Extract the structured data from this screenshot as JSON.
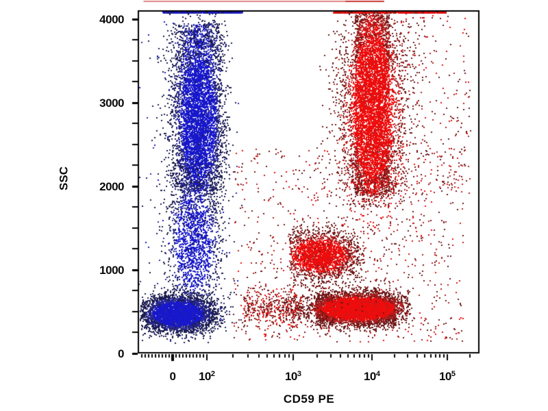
{
  "chart_data": {
    "type": "scatter",
    "subtype": "flow-cytometry-dot-plot",
    "title": "",
    "xlabel": "CD59 PE",
    "ylabel": "SSC",
    "x_scale": "biexponential: linear from -100 to 100, logarithmic above 10^2 up to ~2.7x10^5",
    "ylim": [
      0,
      4095
    ],
    "grid": false,
    "legend": "none",
    "x_ticks": [
      {
        "value": 0,
        "label": "0",
        "exp": null
      },
      {
        "value": 100,
        "label": "10",
        "exp": "2"
      },
      {
        "value": 1000,
        "label": "10",
        "exp": "3"
      },
      {
        "value": 10000,
        "label": "10",
        "exp": "4"
      },
      {
        "value": 100000,
        "label": "10",
        "exp": "5"
      }
    ],
    "x_minor_tick_values": [
      -90,
      -80,
      -70,
      -60,
      -50,
      -40,
      -30,
      -20,
      -10,
      10,
      20,
      30,
      40,
      50,
      60,
      70,
      80,
      90,
      200,
      300,
      400,
      500,
      600,
      700,
      800,
      900,
      2000,
      3000,
      4000,
      5000,
      6000,
      7000,
      8000,
      9000,
      20000,
      30000,
      40000,
      50000,
      60000,
      70000,
      80000,
      90000,
      200000
    ],
    "y_ticks": [
      {
        "value": 0,
        "label": "0"
      },
      {
        "value": 1000,
        "label": "1000"
      },
      {
        "value": 2000,
        "label": "2000"
      },
      {
        "value": 3000,
        "label": "3000"
      },
      {
        "value": 4000,
        "label": "4000"
      }
    ],
    "y_minor_tick_values": [
      250,
      500,
      750,
      1250,
      1500,
      1750,
      2250,
      2500,
      2750,
      3250,
      3500,
      3750
    ],
    "colors": {
      "axis": "#000000",
      "blue": {
        "bright": "#1717cd",
        "mid": "#2a2a9e",
        "dark": "#1c1c52"
      },
      "red": {
        "bright": "#ee0c0c",
        "mid": "#b32020",
        "dark": "#6e1717"
      }
    },
    "populations": [
      {
        "name": "blue CD59-neg granulocyte band (uniform part)",
        "palette": "blue",
        "n": 2700,
        "tone": "auto",
        "x": {
          "dist": "linnorm",
          "mean": 72,
          "sd": 40,
          "min": -70,
          "max": 270
        },
        "y": {
          "dist": "uniform",
          "min": 1950,
          "max": 3950
        }
      },
      {
        "name": "blue CD59-neg granulocyte band (gaussian part)",
        "palette": "blue",
        "n": 3000,
        "tone": "auto",
        "x": {
          "dist": "linnorm",
          "mean": 74,
          "sd": 36,
          "min": -70,
          "max": 270
        },
        "y": {
          "dist": "normal",
          "mean": 2800,
          "sd": 520,
          "min": 750,
          "max": 4085
        }
      },
      {
        "name": "blue mid-SSC tail",
        "palette": "blue",
        "n": 1500,
        "tone": "auto",
        "x": {
          "dist": "linnorm",
          "mean": 60,
          "sd": 38,
          "min": -80,
          "max": 260
        },
        "y": {
          "dist": "normal",
          "mean": 1350,
          "sd": 430,
          "min": 600,
          "max": 2350
        }
      },
      {
        "name": "blue low-SSC lymphocyte blob",
        "palette": "blue",
        "n": 4300,
        "tone": "auto",
        "x": {
          "dist": "linnorm",
          "mean": 14,
          "sd": 52,
          "min": -96,
          "max": 250
        },
        "y": {
          "dist": "normal",
          "mean": 480,
          "sd": 105,
          "min": 120,
          "max": 980
        }
      },
      {
        "name": "blue pile-up row at SSC max",
        "palette": "blue",
        "n": 520,
        "tone": "pileup",
        "x": {
          "dist": "linuniform",
          "min": -30,
          "max": 250
        },
        "y": {
          "dist": "uniform",
          "min": 4075,
          "max": 4093
        }
      },
      {
        "name": "blue sparse scatter",
        "palette": "blue",
        "n": 270,
        "tone": "sparse",
        "x": {
          "dist": "linnorm",
          "mean": 60,
          "sd": 75,
          "min": -100,
          "max": 320
        },
        "y": {
          "dist": "uniform",
          "min": 150,
          "max": 4040
        }
      },
      {
        "name": "red CD59-pos neutrophil column (uniform part)",
        "palette": "red",
        "n": 3100,
        "tone": "auto",
        "x": {
          "dist": "loguniform",
          "min": 3.78,
          "max": 4.22
        },
        "y": {
          "dist": "uniform",
          "min": 1900,
          "max": 4055
        }
      },
      {
        "name": "red CD59-pos neutrophil column (gaussian part)",
        "palette": "red",
        "n": 3300,
        "tone": "auto",
        "x": {
          "dist": "lognorm",
          "mean": 4.01,
          "sd": 0.2,
          "min": 3.45,
          "max": 4.7
        },
        "y": {
          "dist": "normal",
          "mean": 2950,
          "sd": 600,
          "min": 1750,
          "max": 4085
        }
      },
      {
        "name": "red neutrophil halo",
        "palette": "red",
        "n": 650,
        "tone": "auto",
        "x": {
          "dist": "lognorm",
          "mean": 4.01,
          "sd": 0.3,
          "min": 3.2,
          "max": 5.2
        },
        "y": {
          "dist": "normal",
          "mean": 2700,
          "sd": 850,
          "min": 1300,
          "max": 4085
        }
      },
      {
        "name": "red pile-up row at SSC max",
        "palette": "red",
        "n": 620,
        "tone": "pileup",
        "x": {
          "dist": "loguniform",
          "min": 3.5,
          "max": 4.97
        },
        "y": {
          "dist": "uniform",
          "min": 4075,
          "max": 4093
        }
      },
      {
        "name": "red monocyte cluster",
        "palette": "red",
        "n": 2250,
        "tone": "auto",
        "x": {
          "dist": "lognorm",
          "mean": 3.33,
          "sd": 0.25,
          "min": 2.95,
          "max": 3.9
        },
        "y": {
          "dist": "normal",
          "mean": 1180,
          "sd": 140,
          "min": 780,
          "max": 1640
        }
      },
      {
        "name": "red low-SSC horizontal band (uniform part)",
        "palette": "red",
        "n": 2800,
        "tone": "auto",
        "x": {
          "dist": "loguniform",
          "min": 3.28,
          "max": 4.3
        },
        "y": {
          "dist": "normal",
          "mean": 530,
          "sd": 88,
          "min": 190,
          "max": 880
        }
      },
      {
        "name": "red low-SSC horizontal band (gaussian part)",
        "palette": "red",
        "n": 3300,
        "tone": "auto",
        "x": {
          "dist": "lognorm",
          "mean": 3.82,
          "sd": 0.33,
          "min": 2.9,
          "max": 4.5
        },
        "y": {
          "dist": "normal",
          "mean": 545,
          "sd": 100,
          "min": 190,
          "max": 900
        }
      },
      {
        "name": "red band left tail",
        "palette": "red",
        "n": 430,
        "tone": "sparse",
        "x": {
          "dist": "loguniform",
          "min": 2.42,
          "max": 3.1
        },
        "y": {
          "dist": "normal",
          "mean": 545,
          "sd": 115,
          "min": 200,
          "max": 900
        }
      },
      {
        "name": "red diffuse scatter",
        "palette": "red",
        "n": 880,
        "tone": "sparse",
        "x": {
          "dist": "loguniform",
          "min": 2.3,
          "max": 5.2
        },
        "y": {
          "dist": "uniform",
          "min": 140,
          "max": 2450
        }
      },
      {
        "name": "red diffuse scatter high-SSC right side",
        "palette": "red",
        "n": 250,
        "tone": "sparse",
        "x": {
          "dist": "loguniform",
          "min": 4.3,
          "max": 5.3
        },
        "y": {
          "dist": "uniform",
          "min": 1800,
          "max": 4050
        }
      }
    ],
    "top_edge_artifact": {
      "description": "thin red line clipped at the very top edge of the screenshot, above the plot frame",
      "color": "#e08484",
      "dense_color": "#c93434",
      "x_from_value": -85,
      "x_to_value": 14500,
      "dense_from_value": 4600
    }
  }
}
